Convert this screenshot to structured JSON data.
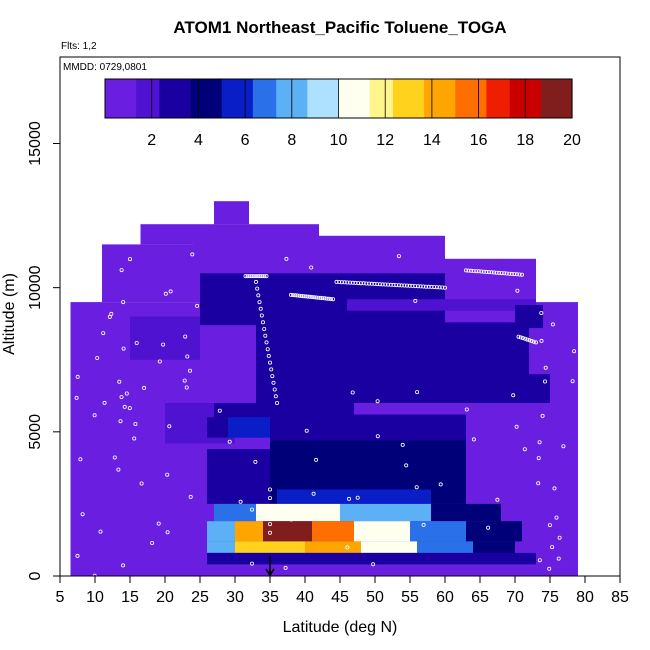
{
  "chart_data": {
    "type": "heatmap",
    "title": "ATOM1 Northeast_Pacific Toluene_TOGA",
    "flights_label": "Flts: 1,2",
    "date_label": "MMDD: 0729,0801",
    "xlabel": "Latitude (deg N)",
    "ylabel": "Altitude (m)",
    "xlim": [
      5,
      85
    ],
    "ylim": [
      0,
      18000
    ],
    "xticks": [
      "5",
      "10",
      "15",
      "20",
      "25",
      "30",
      "35",
      "40",
      "45",
      "50",
      "55",
      "60",
      "65",
      "70",
      "75",
      "80",
      "85"
    ],
    "yticks": [
      "0",
      "5000",
      "10000",
      "15000"
    ],
    "colorbar": {
      "ticks": [
        "2",
        "4",
        "6",
        "8",
        "10",
        "12",
        "14",
        "16",
        "18",
        "20"
      ],
      "range": [
        0,
        20
      ],
      "colors": [
        "#6a1fe0",
        "#4e12d0",
        "#1a00a0",
        "#000078",
        "#0a1ec8",
        "#2a70e8",
        "#5cb0f5",
        "#aee0ff",
        "#fffff0",
        "#fff58a",
        "#ffd21e",
        "#ffa500",
        "#ff6e00",
        "#f01e00",
        "#c80000",
        "#801e1e"
      ]
    },
    "marker": {
      "latitude": 35,
      "label": "arrow"
    },
    "regions": [
      {
        "lat": [
          6.5,
          79
        ],
        "alt": [
          0,
          9500
        ],
        "value": 1.0
      },
      {
        "lat": [
          11,
          24
        ],
        "alt": [
          9500,
          11500
        ],
        "value": 1.0
      },
      {
        "lat": [
          24,
          60
        ],
        "alt": [
          9500,
          11800
        ],
        "value": 1.0
      },
      {
        "lat": [
          60,
          73
        ],
        "alt": [
          9500,
          11000
        ],
        "value": 1.0
      },
      {
        "lat": [
          16.5,
          42
        ],
        "alt": [
          11500,
          12200
        ],
        "value": 1.0
      },
      {
        "lat": [
          27,
          32
        ],
        "alt": [
          12200,
          13000
        ],
        "value": 1.0
      },
      {
        "lat": [
          25,
          60
        ],
        "alt": [
          8700,
          10500
        ],
        "value": 3.0
      },
      {
        "lat": [
          15,
          25
        ],
        "alt": [
          7500,
          9000
        ],
        "value": 2.0
      },
      {
        "lat": [
          33,
          72
        ],
        "alt": [
          6000,
          8800
        ],
        "value": 2.5
      },
      {
        "lat": [
          46,
          73
        ],
        "alt": [
          9200,
          9600
        ],
        "value": 2.2
      },
      {
        "lat": [
          70,
          74
        ],
        "alt": [
          8600,
          9400
        ],
        "value": 3.0
      },
      {
        "lat": [
          50,
          75
        ],
        "alt": [
          6000,
          7000
        ],
        "value": 3.0
      },
      {
        "lat": [
          20,
          30
        ],
        "alt": [
          4600,
          6000
        ],
        "value": 2.0
      },
      {
        "lat": [
          27,
          47
        ],
        "alt": [
          5500,
          6000
        ],
        "value": 3.0
      },
      {
        "lat": [
          26,
          34
        ],
        "alt": [
          4800,
          5500
        ],
        "value": 3.5
      },
      {
        "lat": [
          29,
          35
        ],
        "alt": [
          4800,
          5500
        ],
        "value": 5.5
      },
      {
        "lat": [
          35,
          63
        ],
        "alt": [
          4700,
          5600
        ],
        "value": 3.2
      },
      {
        "lat": [
          35,
          63
        ],
        "alt": [
          2500,
          4700
        ],
        "value": 3.8
      },
      {
        "lat": [
          26,
          35
        ],
        "alt": [
          2500,
          4400
        ],
        "value": 2.5
      },
      {
        "lat": [
          36,
          58
        ],
        "alt": [
          2200,
          3000
        ],
        "value": 5.0
      },
      {
        "lat": [
          27,
          33
        ],
        "alt": [
          1900,
          2500
        ],
        "value": 6.5
      },
      {
        "lat": [
          33,
          45
        ],
        "alt": [
          1900,
          2500
        ],
        "value": 10.0
      },
      {
        "lat": [
          45,
          58
        ],
        "alt": [
          1900,
          2500
        ],
        "value": 8.5
      },
      {
        "lat": [
          58,
          68
        ],
        "alt": [
          1900,
          2500
        ],
        "value": 4.5
      },
      {
        "lat": [
          26,
          30
        ],
        "alt": [
          1200,
          1900
        ],
        "value": 8.0
      },
      {
        "lat": [
          30,
          34
        ],
        "alt": [
          1200,
          1900
        ],
        "value": 14.5
      },
      {
        "lat": [
          34,
          41
        ],
        "alt": [
          1200,
          1900
        ],
        "value": 19.0
      },
      {
        "lat": [
          41,
          47
        ],
        "alt": [
          1200,
          1900
        ],
        "value": 15.5
      },
      {
        "lat": [
          47,
          55
        ],
        "alt": [
          1200,
          1900
        ],
        "value": 10.5
      },
      {
        "lat": [
          55,
          63
        ],
        "alt": [
          1200,
          1900
        ],
        "value": 7.0
      },
      {
        "lat": [
          63,
          71
        ],
        "alt": [
          1200,
          1900
        ],
        "value": 4.0
      },
      {
        "lat": [
          26,
          30
        ],
        "alt": [
          800,
          1200
        ],
        "value": 8.5
      },
      {
        "lat": [
          30,
          40
        ],
        "alt": [
          800,
          1200
        ],
        "value": 13.0
      },
      {
        "lat": [
          40,
          48
        ],
        "alt": [
          800,
          1200
        ],
        "value": 14.0
      },
      {
        "lat": [
          48,
          56
        ],
        "alt": [
          800,
          1200
        ],
        "value": 10.0
      },
      {
        "lat": [
          56,
          64
        ],
        "alt": [
          800,
          1200
        ],
        "value": 6.5
      },
      {
        "lat": [
          64,
          70
        ],
        "alt": [
          800,
          1200
        ],
        "value": 4.0
      },
      {
        "lat": [
          26,
          73
        ],
        "alt": [
          400,
          800
        ],
        "value": 2.5
      },
      {
        "lat": [
          6.5,
          79
        ],
        "alt": [
          0,
          400
        ],
        "value": 1.2
      }
    ]
  }
}
